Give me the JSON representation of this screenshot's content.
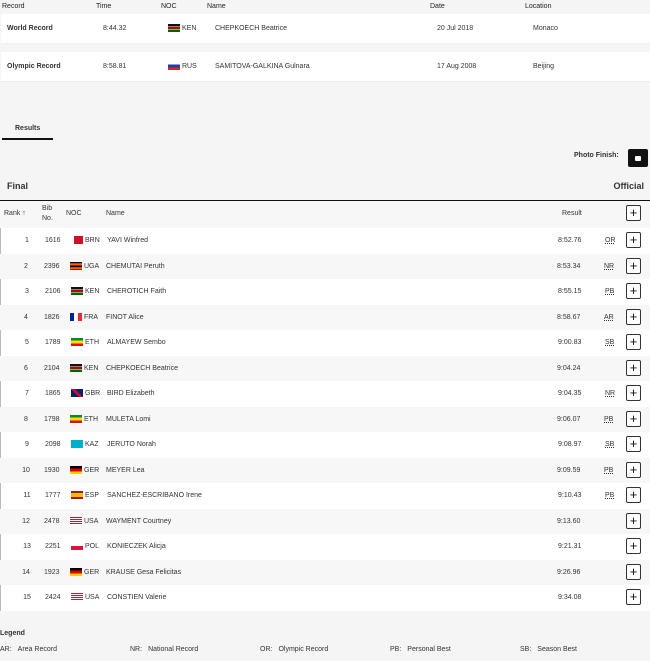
{
  "records": {
    "headers": [
      "Record",
      "Time",
      "NOC",
      "Name",
      "Date",
      "Location"
    ],
    "rows": [
      {
        "record": "World Record",
        "time": "8:44.32",
        "noc": "KEN",
        "name": "CHEPKOECH Beatrice",
        "date": "20 Jul 2018",
        "location": "Monaco"
      },
      {
        "record": "Olympic Record",
        "time": "8:58.81",
        "noc": "RUS",
        "name": "SAMITOVA-GALKINA Gulnara",
        "date": "17 Aug 2008",
        "location": "Beijing"
      }
    ]
  },
  "tabs": {
    "results": "Results"
  },
  "photo_finish": {
    "label": "Photo Finish:",
    "icon": "camera-icon"
  },
  "section": {
    "title": "Final",
    "status": "Official"
  },
  "table": {
    "headers": {
      "rank": "Rank ↑",
      "bib": "Bib No.",
      "noc": "NOC",
      "name": "Name",
      "result": "Result"
    },
    "rows": [
      {
        "rank": "1",
        "bib": "1616",
        "noc": "BRN",
        "name": "YAVI Winfred",
        "result": "8:52.76",
        "mark": "OR"
      },
      {
        "rank": "2",
        "bib": "2396",
        "noc": "UGA",
        "name": "CHEMUTAI Peruth",
        "result": "8:53.34",
        "mark": "NR"
      },
      {
        "rank": "3",
        "bib": "2106",
        "noc": "KEN",
        "name": "CHEROTICH Faith",
        "result": "8:55.15",
        "mark": "PB"
      },
      {
        "rank": "4",
        "bib": "1826",
        "noc": "FRA",
        "name": "FINOT Alice",
        "result": "8:58.67",
        "mark": "AR"
      },
      {
        "rank": "5",
        "bib": "1789",
        "noc": "ETH",
        "name": "ALMAYEW Sembo",
        "result": "9:00.83",
        "mark": "SB"
      },
      {
        "rank": "6",
        "bib": "2104",
        "noc": "KEN",
        "name": "CHEPKOECH Beatrice",
        "result": "9:04.24",
        "mark": ""
      },
      {
        "rank": "7",
        "bib": "1865",
        "noc": "GBR",
        "name": "BIRD Elizabeth",
        "result": "9:04.35",
        "mark": "NR"
      },
      {
        "rank": "8",
        "bib": "1798",
        "noc": "ETH",
        "name": "MULETA Lomi",
        "result": "9:06.07",
        "mark": "PB"
      },
      {
        "rank": "9",
        "bib": "2098",
        "noc": "KAZ",
        "name": "JERUTO Norah",
        "result": "9:08.97",
        "mark": "SB"
      },
      {
        "rank": "10",
        "bib": "1930",
        "noc": "GER",
        "name": "MEYER Lea",
        "result": "9:09.59",
        "mark": "PB"
      },
      {
        "rank": "11",
        "bib": "1777",
        "noc": "ESP",
        "name": "SANCHEZ-ESCRIBANO Irene",
        "result": "9:10.43",
        "mark": "PB"
      },
      {
        "rank": "12",
        "bib": "2478",
        "noc": "USA",
        "name": "WAYMENT Courtney",
        "result": "9:13.60",
        "mark": ""
      },
      {
        "rank": "13",
        "bib": "2251",
        "noc": "POL",
        "name": "KONIECZEK Alicja",
        "result": "9:21.31",
        "mark": ""
      },
      {
        "rank": "14",
        "bib": "1923",
        "noc": "GER",
        "name": "KRAUSE Gesa Felicitas",
        "result": "9:26.96",
        "mark": ""
      },
      {
        "rank": "15",
        "bib": "2424",
        "noc": "USA",
        "name": "CONSTIEN Valerie",
        "result": "9:34.08",
        "mark": ""
      }
    ]
  },
  "legend": {
    "title": "Legend",
    "items": [
      {
        "code": "AR:",
        "text": "Area Record"
      },
      {
        "code": "NR:",
        "text": "National Record"
      },
      {
        "code": "OR:",
        "text": "Olympic Record"
      },
      {
        "code": "PB:",
        "text": "Personal Best"
      },
      {
        "code": "SB:",
        "text": "Season Best"
      }
    ]
  },
  "flag_colors": {
    "KEN": "linear-gradient(#111 0 33%,#fff 33% 40%,#b00 40% 60%,#fff 60% 67%,#060 67%)",
    "RUS": "linear-gradient(#fff 0 33%,#1c3fa8 33% 66%,#d52b1e 66%)",
    "BRN": "linear-gradient(90deg,#fff 0 25%,#ce1126 25%)",
    "UGA": "linear-gradient(#000 0 17%,#fcdc04 17% 33%,#d90000 33% 50%,#000 50% 67%,#fcdc04 67% 83%,#d90000 83%)",
    "FRA": "linear-gradient(90deg,#002395 0 33%,#fff 33% 66%,#ed2939 66%)",
    "ETH": "linear-gradient(#078930 0 33%,#fcdd09 33% 66%,#da121a 66%)",
    "GBR": "linear-gradient(45deg,#012169 40%,#c8102e 40% 60%,#012169 60%)",
    "KAZ": "linear-gradient(#00afca,#00afca)",
    "GER": "linear-gradient(#000 0 33%,#d00 33% 66%,#ffce00 66%)",
    "ESP": "linear-gradient(#aa151b 0 25%,#f1bf00 25% 75%,#aa151b 75%)",
    "USA": "repeating-linear-gradient(#b22234 0 1px,#fff 1px 2px)",
    "POL": "linear-gradient(#fff 0 50%,#dc143c 50%)"
  }
}
